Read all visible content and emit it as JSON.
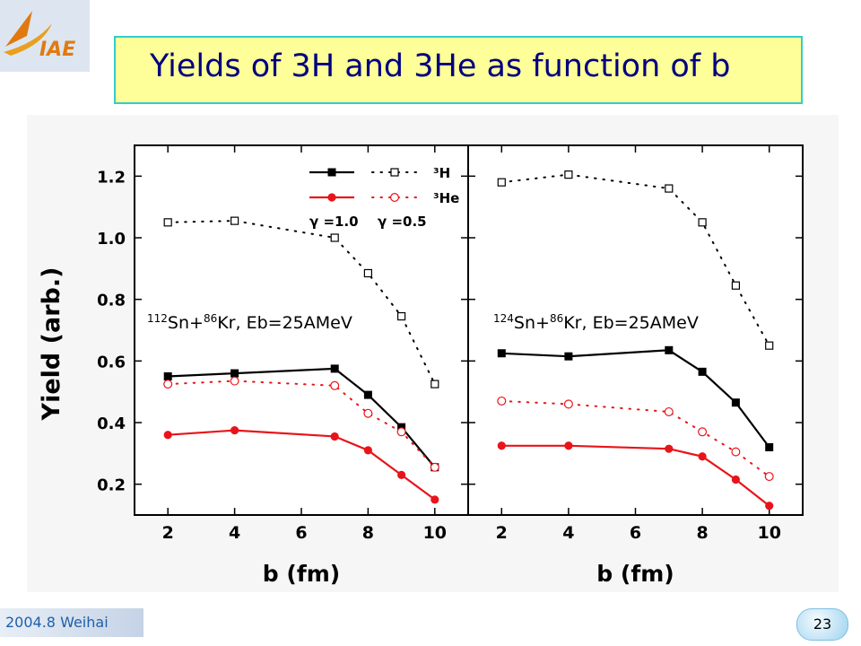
{
  "slide": {
    "title": "Yields of  3H and 3He as function of b",
    "footer": "2004.8 Weihai",
    "page_number": "23",
    "logo_text": "IAE"
  },
  "colors": {
    "title_box_fill": "#ffff99",
    "title_box_border": "#33cccc",
    "title_text": "#000080",
    "series_3H": "#000000",
    "series_3He": "#e8141a",
    "footer_text": "#1f5fa8"
  },
  "chart_data": {
    "type": "line",
    "shared_ylabel": "Yield (arb.)",
    "legend": {
      "placement": "top-right",
      "entries": [
        {
          "label": "³H",
          "series": "3H"
        },
        {
          "label": "³He",
          "series": "3He"
        }
      ],
      "gamma_labels": [
        "γ =1.0",
        "γ =0.5"
      ],
      "style_note_solid": "γ =1.0",
      "style_note_dotted": "γ =0.5"
    },
    "panels": [
      {
        "annotation": "¹¹²Sn+⁸⁶Kr, Eb=25AMeV",
        "annotation_parts": {
          "a_mass": "112",
          "a_el": "Sn+",
          "b_mass": "86",
          "b_el": "Kr",
          "rest": ",  Eb=25AMeV"
        },
        "xlabel": "b (fm)",
        "xlim": [
          1,
          11
        ],
        "xticks": [
          2,
          4,
          6,
          8,
          10
        ],
        "ylim": [
          0.1,
          1.3
        ],
        "yticks": [
          0.2,
          0.4,
          0.6,
          0.8,
          1.0,
          1.2
        ],
        "series": [
          {
            "name": "³H γ =1.0",
            "color": "#000000",
            "line": "solid",
            "marker": "filled-square",
            "x": [
              2,
              4,
              7,
              8,
              9,
              10
            ],
            "y": [
              0.55,
              0.56,
              0.575,
              0.49,
              0.385,
              0.255
            ]
          },
          {
            "name": "³H γ =0.5",
            "color": "#000000",
            "line": "dotted",
            "marker": "open-square",
            "x": [
              2,
              4,
              7,
              8,
              9,
              10
            ],
            "y": [
              1.05,
              1.055,
              1.0,
              0.885,
              0.745,
              0.525
            ]
          },
          {
            "name": "³He γ =1.0",
            "color": "#e8141a",
            "line": "solid",
            "marker": "filled-circle",
            "x": [
              2,
              4,
              7,
              8,
              9,
              10
            ],
            "y": [
              0.36,
              0.375,
              0.355,
              0.31,
              0.23,
              0.15
            ]
          },
          {
            "name": "³He γ =0.5",
            "color": "#e8141a",
            "line": "dotted",
            "marker": "open-circle",
            "x": [
              2,
              4,
              7,
              8,
              9,
              10
            ],
            "y": [
              0.525,
              0.535,
              0.52,
              0.43,
              0.37,
              0.255
            ]
          }
        ]
      },
      {
        "annotation": "¹²⁴Sn+⁸⁶Kr, Eb=25AMeV",
        "annotation_parts": {
          "a_mass": "124",
          "a_el": "Sn+",
          "b_mass": "86",
          "b_el": "Kr",
          "rest": ",  Eb=25AMeV"
        },
        "xlabel": "b (fm)",
        "xlim": [
          1,
          11
        ],
        "xticks": [
          2,
          4,
          6,
          8,
          10
        ],
        "ylim": [
          0.1,
          1.3
        ],
        "yticks": [
          0.2,
          0.4,
          0.6,
          0.8,
          1.0,
          1.2
        ],
        "series": [
          {
            "name": "³H γ =1.0",
            "color": "#000000",
            "line": "solid",
            "marker": "filled-square",
            "x": [
              2,
              4,
              7,
              8,
              9,
              10
            ],
            "y": [
              0.625,
              0.615,
              0.635,
              0.565,
              0.465,
              0.32
            ]
          },
          {
            "name": "³H γ =0.5",
            "color": "#000000",
            "line": "dotted",
            "marker": "open-square",
            "x": [
              2,
              4,
              7,
              8,
              9,
              10
            ],
            "y": [
              1.18,
              1.205,
              1.16,
              1.05,
              0.845,
              0.65
            ]
          },
          {
            "name": "³He γ =1.0",
            "color": "#e8141a",
            "line": "solid",
            "marker": "filled-circle",
            "x": [
              2,
              4,
              7,
              8,
              9,
              10
            ],
            "y": [
              0.325,
              0.325,
              0.315,
              0.29,
              0.215,
              0.13
            ]
          },
          {
            "name": "³He γ =0.5",
            "color": "#e8141a",
            "line": "dotted",
            "marker": "open-circle",
            "x": [
              2,
              4,
              7,
              8,
              9,
              10
            ],
            "y": [
              0.47,
              0.46,
              0.435,
              0.37,
              0.305,
              0.225
            ]
          }
        ]
      }
    ]
  }
}
